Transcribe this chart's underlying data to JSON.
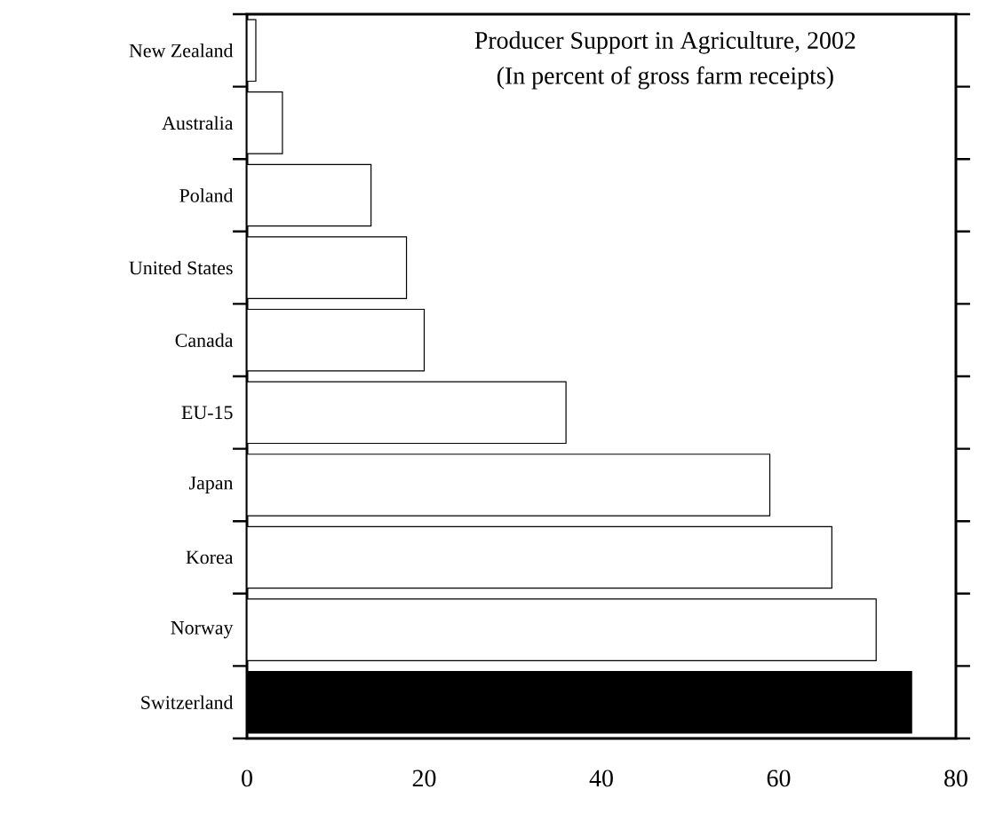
{
  "chart_data": {
    "type": "bar",
    "orientation": "horizontal",
    "title": "Producer Support in Agriculture, 2002",
    "subtitle": "(In percent of gross farm receipts)",
    "categories": [
      "New Zealand",
      "Australia",
      "Poland",
      "United States",
      "Canada",
      "EU-15",
      "Japan",
      "Korea",
      "Norway",
      "Switzerland"
    ],
    "values": [
      1,
      4,
      14,
      18,
      20,
      36,
      59,
      66,
      71,
      75
    ],
    "colors": [
      "#ffffff",
      "#ffffff",
      "#ffffff",
      "#ffffff",
      "#ffffff",
      "#ffffff",
      "#ffffff",
      "#ffffff",
      "#ffffff",
      "#000000"
    ],
    "xlim": [
      0,
      80
    ],
    "xticks": [
      0,
      20,
      40,
      60,
      80
    ]
  }
}
